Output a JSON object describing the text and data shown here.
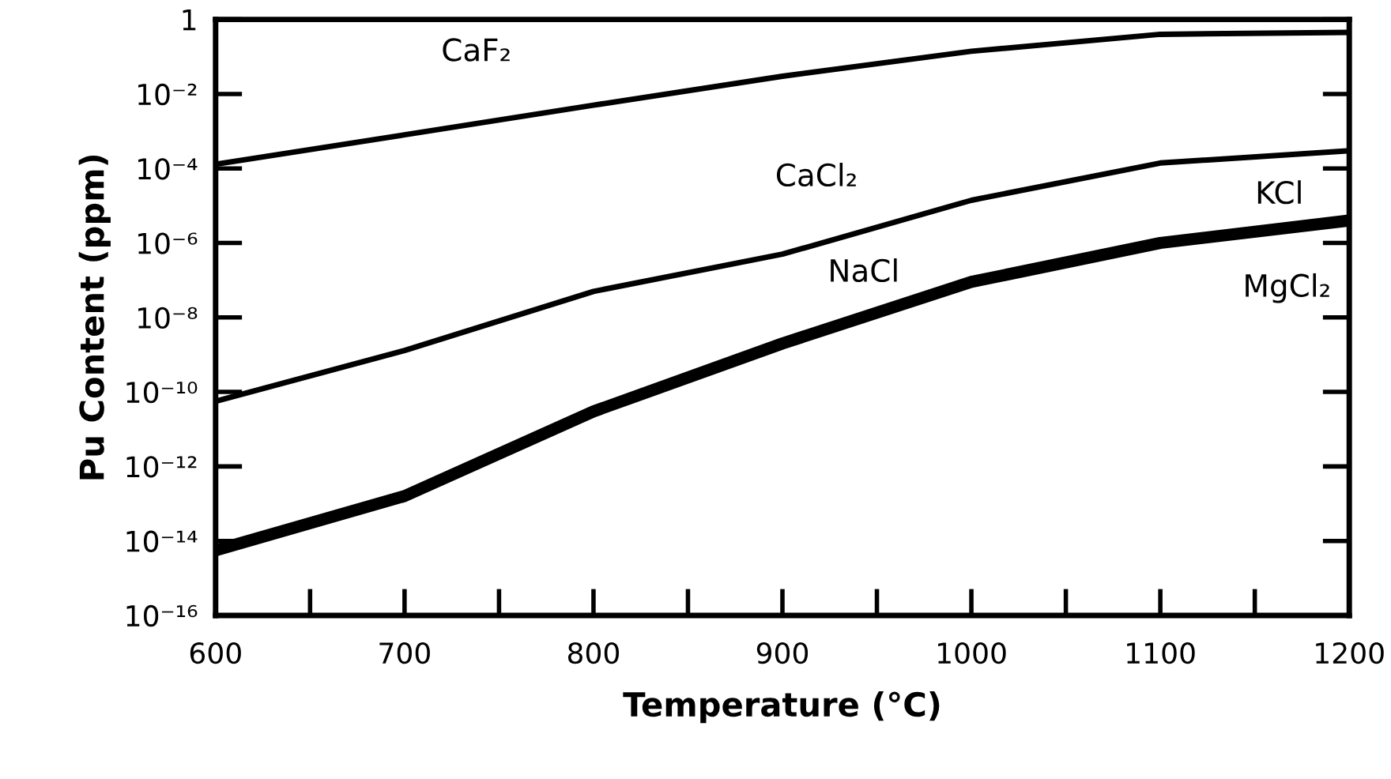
{
  "chart_data": {
    "type": "line",
    "xlabel": "Temperature (°C)",
    "ylabel": "Pu Content (ppm)",
    "x": [
      600,
      700,
      800,
      900,
      1000,
      1100,
      1200
    ],
    "series": [
      {
        "color": "#000000",
        "values": [
          0.00013,
          0.0008,
          0.005,
          0.03,
          0.14,
          0.4,
          0.45
        ]
      },
      {
        "color": "#000000",
        "values": [
          5.6e-11,
          1.3e-09,
          5e-08,
          5e-07,
          1.4e-05,
          0.00014,
          0.0003
        ]
      },
      {
        "color": "#000000",
        "values": [
          5.6e-15,
          1.6e-13,
          3e-11,
          2e-09,
          9e-08,
          1e-06,
          4e-06
        ]
      }
    ],
    "annotations": [
      {
        "text": "CaF₂",
        "x": 738,
        "y": 0.0016
      },
      {
        "text": "CaCl₂",
        "x": 918,
        "y": 8.5e-07
      },
      {
        "text": "KCl",
        "x": 1163,
        "y": 0.0002
      },
      {
        "text": "NaCl",
        "x": 943,
        "y": 1e-08
      },
      {
        "text": "MgCl₂",
        "x": 1167,
        "y": 2.5e-06
      }
    ],
    "log": "y",
    "xlim": [
      600,
      1200
    ],
    "ylim": [
      1e-16,
      1
    ],
    "xticks": [
      600,
      700,
      800,
      900,
      1000,
      1100,
      1200
    ],
    "yticks": [
      1,
      {
        "value": 0.01,
        "label": "10⁻²"
      },
      {
        "value": 0.0001,
        "label": "10⁻⁴"
      },
      {
        "value": 1e-06,
        "label": "10⁻⁶"
      },
      {
        "value": 1e-08,
        "label": "10⁻⁸"
      },
      {
        "value": 1e-10,
        "label": "10⁻¹⁰"
      },
      {
        "value": 1e-12,
        "label": "10⁻¹²"
      },
      {
        "value": 1e-14,
        "label": "10⁻¹⁴"
      },
      {
        "value": 1e-16,
        "label": "10⁻¹⁶"
      }
    ],
    "grid": false,
    "legend": false,
    "marker": "none",
    "line_style": "solid"
  }
}
